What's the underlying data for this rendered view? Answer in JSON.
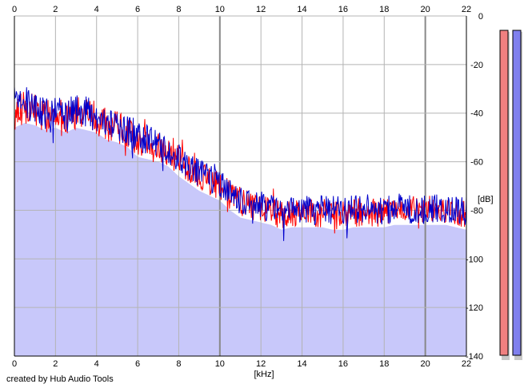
{
  "chart_data": {
    "type": "line",
    "xlabel": "[kHz]",
    "ylabel": "[dB]",
    "xlim": [
      0,
      22
    ],
    "ylim": [
      -140,
      0
    ],
    "x_ticks": [
      0,
      2,
      4,
      6,
      8,
      10,
      12,
      14,
      16,
      18,
      20,
      22
    ],
    "x_tick_labels": [
      "0",
      "2",
      "4",
      "6",
      "8",
      "10",
      "12",
      "14",
      "16",
      "18",
      "20",
      "22"
    ],
    "y_ticks": [
      0,
      -20,
      -40,
      -60,
      -80,
      -100,
      -120,
      -140
    ],
    "y_tick_labels": [
      "0",
      "-20",
      "-40",
      "-60",
      "-80",
      "-100",
      "-120",
      "-140"
    ],
    "grid": true,
    "legend": "none",
    "series": [
      {
        "color": "#ff0000",
        "x": [
          0,
          0.5,
          1,
          1.5,
          2,
          2.5,
          3,
          3.5,
          4,
          4.5,
          5,
          5.5,
          6,
          6.5,
          7,
          7.5,
          8,
          8.5,
          9,
          9.5,
          10,
          10.5,
          11,
          11.5,
          12,
          12.5,
          13,
          13.5,
          14,
          14.5,
          15,
          15.5,
          16,
          16.5,
          17,
          17.5,
          18,
          18.5,
          19,
          19.5,
          20,
          20.5,
          21,
          21.5,
          22
        ],
        "y": [
          -40,
          -38,
          -39,
          -41,
          -40,
          -42,
          -40,
          -41,
          -42,
          -45,
          -46,
          -48,
          -52,
          -53,
          -54,
          -56,
          -60,
          -63,
          -66,
          -68,
          -70,
          -74,
          -77,
          -78,
          -79,
          -80,
          -82,
          -81,
          -81,
          -81,
          -81,
          -82,
          -82,
          -81,
          -81,
          -81,
          -81,
          -80,
          -80,
          -80,
          -80,
          -80,
          -80,
          -81,
          -82
        ]
      },
      {
        "color": "#0000cc",
        "x": [
          0,
          0.5,
          1,
          1.5,
          2,
          2.5,
          3,
          3.5,
          4,
          4.5,
          5,
          5.5,
          6,
          6.5,
          7,
          7.5,
          8,
          8.5,
          9,
          9.5,
          10,
          10.5,
          11,
          11.5,
          12,
          12.5,
          13,
          13.5,
          14,
          14.5,
          15,
          15.5,
          16,
          16.5,
          17,
          17.5,
          18,
          18.5,
          19,
          19.5,
          20,
          20.5,
          21,
          21.5,
          22
        ],
        "y": [
          -36,
          -35,
          -38,
          -40,
          -39,
          -41,
          -39,
          -40,
          -41,
          -44,
          -45,
          -47,
          -50,
          -51,
          -53,
          -55,
          -58,
          -62,
          -65,
          -67,
          -69,
          -73,
          -76,
          -77,
          -78,
          -79,
          -80,
          -80,
          -79,
          -80,
          -80,
          -80,
          -80,
          -80,
          -79,
          -80,
          -80,
          -79,
          -79,
          -80,
          -80,
          -79,
          -79,
          -80,
          -80
        ]
      }
    ],
    "level_meters": [
      {
        "color": "#f08080",
        "level": 1.0
      },
      {
        "color": "#8080ee",
        "level": 1.0
      }
    ]
  },
  "footer": {
    "credit": "created by Hub Audio Tools"
  }
}
